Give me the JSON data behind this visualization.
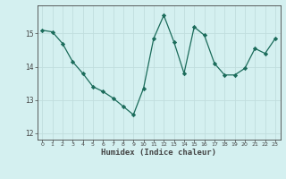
{
  "x": [
    0,
    1,
    2,
    3,
    4,
    5,
    6,
    7,
    8,
    9,
    10,
    11,
    12,
    13,
    14,
    15,
    16,
    17,
    18,
    19,
    20,
    21,
    22,
    23
  ],
  "y": [
    15.1,
    15.05,
    14.7,
    14.15,
    13.8,
    13.4,
    13.25,
    13.05,
    12.8,
    12.55,
    13.35,
    14.85,
    15.55,
    14.75,
    13.8,
    15.2,
    14.95,
    14.1,
    13.75,
    13.75,
    13.95,
    14.55,
    14.4,
    14.85
  ],
  "title": "",
  "xlabel": "Humidex (Indice chaleur)",
  "ylabel": "",
  "line_color": "#1a6b5a",
  "marker": "D",
  "marker_size": 2.2,
  "bg_color": "#d4f0f0",
  "grid_color": "#c0dede",
  "axes_color": "#444444",
  "ylim": [
    11.8,
    15.85
  ],
  "xlim": [
    -0.5,
    23.5
  ],
  "yticks": [
    12,
    13,
    14,
    15
  ],
  "xticks": [
    0,
    1,
    2,
    3,
    4,
    5,
    6,
    7,
    8,
    9,
    10,
    11,
    12,
    13,
    14,
    15,
    16,
    17,
    18,
    19,
    20,
    21,
    22,
    23
  ]
}
